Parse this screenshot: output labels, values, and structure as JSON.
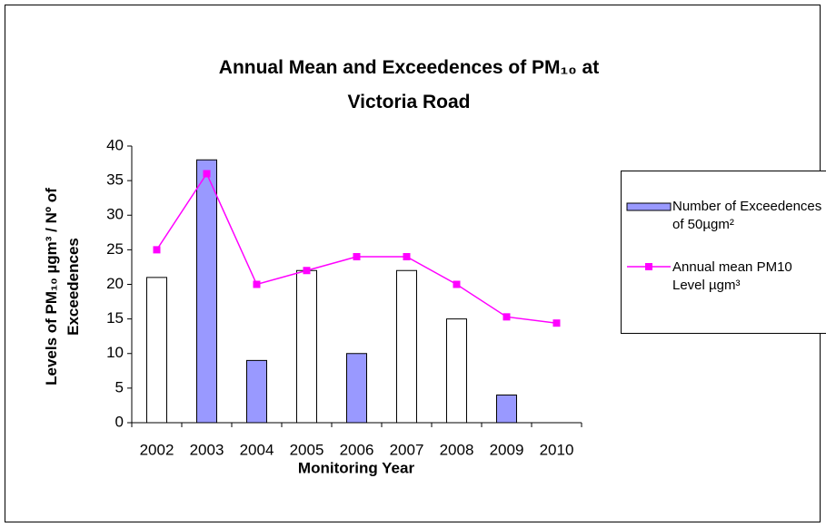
{
  "chart_data": {
    "type": "bar-line",
    "title": "Annual Mean and Exceedences of PM₁₀ at Victoria Road",
    "x_label": "Monitoring Year",
    "y_label": "Levels of PM₁₀ µgm³ / Nº of Exceedences",
    "categories": [
      "2002",
      "2003",
      "2004",
      "2005",
      "2006",
      "2007",
      "2008",
      "2009",
      "2010"
    ],
    "series": [
      {
        "name": "Number of Exceedences of 50µgm²",
        "type": "bar",
        "color": "#9999ff",
        "colors": [
          "#ffffff",
          "#9999ff",
          "#9999ff",
          "#ffffff",
          "#9999ff",
          "#ffffff",
          "#ffffff",
          "#9999ff",
          "#ffffff"
        ],
        "values": [
          21,
          38,
          9,
          22,
          10,
          22,
          15,
          4,
          null
        ]
      },
      {
        "name": "Annual mean PM10 Level µgm³",
        "type": "line",
        "color": "#ff00ff",
        "values": [
          25,
          36,
          20,
          22,
          24,
          24,
          20,
          15.3,
          14.4
        ]
      }
    ],
    "ylim": [
      0,
      40
    ],
    "yticks": [
      0,
      5,
      10,
      15,
      20,
      25,
      30,
      35,
      40
    ],
    "grid": false,
    "legend": "right"
  }
}
